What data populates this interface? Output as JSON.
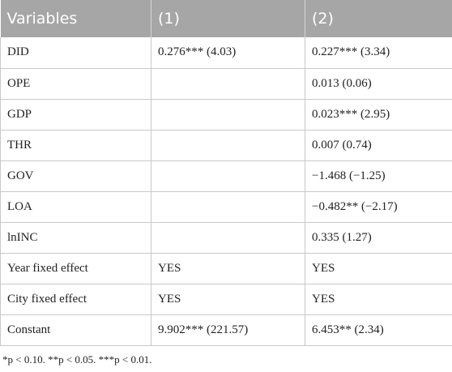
{
  "table": {
    "headers": [
      "Variables",
      "(1)",
      "(2)"
    ],
    "rows": [
      {
        "var": "DID",
        "col1": "0.276*** (4.03)",
        "col2": "0.227*** (3.34)"
      },
      {
        "var": "OPE",
        "col1": "",
        "col2": "0.013 (0.06)"
      },
      {
        "var": "GDP",
        "col1": "",
        "col2": "0.023*** (2.95)"
      },
      {
        "var": "THR",
        "col1": "",
        "col2": "0.007 (0.74)"
      },
      {
        "var": "GOV",
        "col1": "",
        "col2": "−1.468 (−1.25)"
      },
      {
        "var": "LOA",
        "col1": "",
        "col2": "−0.482** (−2.17)"
      },
      {
        "var": "lnINC",
        "col1": "",
        "col2": "0.335 (1.27)"
      },
      {
        "var": "Year fixed effect",
        "col1": "YES",
        "col2": "YES"
      },
      {
        "var": "City fixed effect",
        "col1": "YES",
        "col2": "YES"
      },
      {
        "var": "Constant",
        "col1": "9.902*** (221.57)",
        "col2": "6.453** (2.34)"
      }
    ]
  },
  "footnote": "*p < 0.10. **p < 0.05. ***p < 0.01."
}
